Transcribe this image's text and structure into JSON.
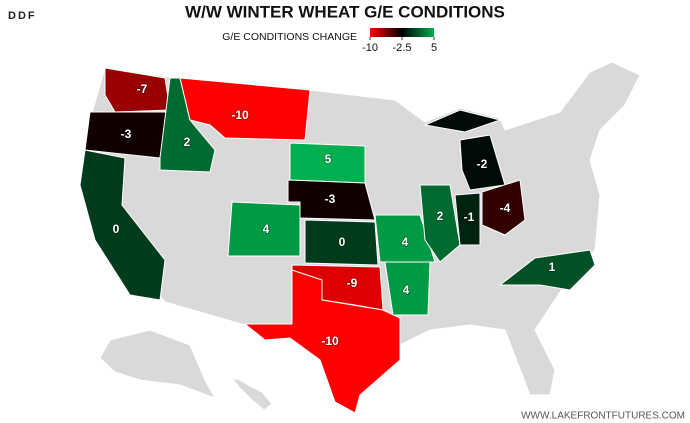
{
  "logo": "DDF",
  "title": "W/W WINTER WHEAT G/E CONDITIONS",
  "legend": {
    "title": "G/E CONDITIONS CHANGE",
    "stops": [
      {
        "value": -10,
        "color": "#ff0000"
      },
      {
        "value": -2.5,
        "color": "#000000"
      },
      {
        "value": 5,
        "color": "#00b050"
      }
    ]
  },
  "values": [
    -7,
    -3,
    0,
    2,
    -10,
    5,
    -3,
    4,
    0,
    -9,
    -10,
    4,
    4,
    2,
    -1,
    -2,
    -4,
    1
  ],
  "footer": "WWW.LAKEFRONTFUTURES.COM"
}
